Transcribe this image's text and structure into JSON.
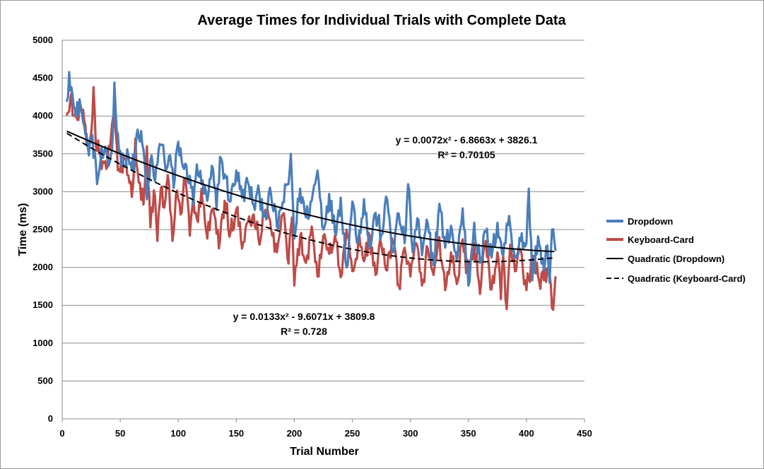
{
  "chart_data": {
    "type": "line",
    "title": "Average Times for Individual Trials with Complete Data",
    "xlabel": "Trial Number",
    "ylabel": "Time (ms)",
    "xlim": [
      0,
      450
    ],
    "ylim": [
      0,
      5000
    ],
    "x_ticks": [
      0,
      50,
      100,
      150,
      200,
      250,
      300,
      350,
      400,
      450
    ],
    "y_ticks": [
      0,
      500,
      1000,
      1500,
      2000,
      2500,
      3000,
      3500,
      4000,
      4500,
      5000
    ],
    "grid": "horizontal",
    "legend_position": "right",
    "series": [
      {
        "name": "Dropdown",
        "color": "#4a7ebb",
        "x_range": [
          4,
          425
        ],
        "anchors": [
          [
            4,
            4200
          ],
          [
            6,
            4580
          ],
          [
            8,
            4380
          ],
          [
            10,
            4120
          ],
          [
            12,
            3980
          ],
          [
            15,
            4220
          ],
          [
            18,
            3920
          ],
          [
            20,
            3760
          ],
          [
            22,
            3600
          ],
          [
            25,
            3650
          ],
          [
            28,
            3540
          ],
          [
            30,
            3100
          ],
          [
            33,
            3420
          ],
          [
            36,
            3500
          ],
          [
            40,
            3340
          ],
          [
            43,
            3560
          ],
          [
            45,
            4440
          ],
          [
            47,
            3800
          ],
          [
            50,
            3540
          ],
          [
            53,
            3330
          ],
          [
            56,
            3560
          ],
          [
            60,
            3290
          ],
          [
            63,
            3480
          ],
          [
            65,
            3820
          ],
          [
            70,
            3560
          ],
          [
            73,
            2900
          ],
          [
            76,
            3420
          ],
          [
            80,
            3140
          ],
          [
            83,
            3540
          ],
          [
            86,
            3620
          ],
          [
            90,
            3300
          ],
          [
            93,
            3480
          ],
          [
            96,
            3050
          ],
          [
            100,
            3660
          ],
          [
            105,
            3300
          ],
          [
            110,
            3210
          ],
          [
            113,
            2820
          ],
          [
            116,
            3360
          ],
          [
            120,
            3100
          ],
          [
            125,
            2880
          ],
          [
            130,
            3300
          ],
          [
            133,
            2760
          ],
          [
            136,
            3460
          ],
          [
            140,
            3230
          ],
          [
            145,
            2870
          ],
          [
            150,
            3280
          ],
          [
            155,
            2920
          ],
          [
            160,
            3120
          ],
          [
            165,
            2820
          ],
          [
            170,
            2960
          ],
          [
            175,
            2700
          ],
          [
            180,
            2960
          ],
          [
            185,
            2540
          ],
          [
            190,
            2860
          ],
          [
            195,
            3100
          ],
          [
            197,
            3500
          ],
          [
            200,
            2380
          ],
          [
            205,
            3040
          ],
          [
            210,
            2660
          ],
          [
            215,
            2880
          ],
          [
            220,
            3280
          ],
          [
            225,
            2500
          ],
          [
            230,
            2970
          ],
          [
            235,
            2460
          ],
          [
            240,
            2920
          ],
          [
            245,
            2000
          ],
          [
            250,
            2870
          ],
          [
            255,
            2340
          ],
          [
            260,
            2900
          ],
          [
            265,
            2250
          ],
          [
            270,
            2720
          ],
          [
            275,
            2430
          ],
          [
            280,
            2900
          ],
          [
            285,
            2200
          ],
          [
            290,
            2710
          ],
          [
            295,
            2320
          ],
          [
            298,
            3100
          ],
          [
            302,
            2200
          ],
          [
            306,
            2650
          ],
          [
            310,
            2160
          ],
          [
            315,
            2580
          ],
          [
            320,
            2030
          ],
          [
            325,
            2840
          ],
          [
            330,
            2260
          ],
          [
            335,
            2550
          ],
          [
            340,
            2080
          ],
          [
            345,
            2780
          ],
          [
            350,
            1760
          ],
          [
            355,
            2590
          ],
          [
            360,
            2060
          ],
          [
            365,
            2470
          ],
          [
            370,
            2130
          ],
          [
            375,
            2590
          ],
          [
            380,
            2160
          ],
          [
            385,
            2680
          ],
          [
            390,
            2130
          ],
          [
            395,
            2350
          ],
          [
            400,
            2320
          ],
          [
            402,
            3040
          ],
          [
            405,
            1830
          ],
          [
            410,
            2410
          ],
          [
            415,
            1960
          ],
          [
            418,
            2290
          ],
          [
            420,
            1800
          ],
          [
            422,
            2500
          ],
          [
            425,
            2230
          ]
        ],
        "jitter": 150
      },
      {
        "name": "Keyboard-Card",
        "color": "#be4b48",
        "x_range": [
          4,
          425
        ],
        "anchors": [
          [
            4,
            4020
          ],
          [
            6,
            4060
          ],
          [
            8,
            4300
          ],
          [
            10,
            4000
          ],
          [
            13,
            3950
          ],
          [
            16,
            4130
          ],
          [
            20,
            3880
          ],
          [
            22,
            3640
          ],
          [
            25,
            3780
          ],
          [
            27,
            4380
          ],
          [
            29,
            3600
          ],
          [
            32,
            3500
          ],
          [
            35,
            3400
          ],
          [
            38,
            3300
          ],
          [
            41,
            3560
          ],
          [
            45,
            4050
          ],
          [
            48,
            3280
          ],
          [
            50,
            3260
          ],
          [
            53,
            3460
          ],
          [
            56,
            3220
          ],
          [
            60,
            2930
          ],
          [
            63,
            3700
          ],
          [
            66,
            3120
          ],
          [
            70,
            2830
          ],
          [
            73,
            3600
          ],
          [
            76,
            2530
          ],
          [
            79,
            3020
          ],
          [
            82,
            2350
          ],
          [
            85,
            3050
          ],
          [
            88,
            2790
          ],
          [
            91,
            3220
          ],
          [
            95,
            2350
          ],
          [
            98,
            2960
          ],
          [
            102,
            2700
          ],
          [
            106,
            3180
          ],
          [
            110,
            2420
          ],
          [
            113,
            2950
          ],
          [
            117,
            2600
          ],
          [
            120,
            3040
          ],
          [
            125,
            2380
          ],
          [
            130,
            2780
          ],
          [
            135,
            2250
          ],
          [
            140,
            2880
          ],
          [
            145,
            2460
          ],
          [
            150,
            2760
          ],
          [
            155,
            2250
          ],
          [
            160,
            2600
          ],
          [
            165,
            2700
          ],
          [
            170,
            2300
          ],
          [
            175,
            2760
          ],
          [
            180,
            2500
          ],
          [
            185,
            2200
          ],
          [
            190,
            2700
          ],
          [
            195,
            2050
          ],
          [
            198,
            2660
          ],
          [
            200,
            1760
          ],
          [
            205,
            2420
          ],
          [
            210,
            2060
          ],
          [
            215,
            2540
          ],
          [
            220,
            1880
          ],
          [
            225,
            2420
          ],
          [
            230,
            2180
          ],
          [
            235,
            2420
          ],
          [
            240,
            1870
          ],
          [
            245,
            2500
          ],
          [
            250,
            1950
          ],
          [
            255,
            2330
          ],
          [
            260,
            2080
          ],
          [
            265,
            2420
          ],
          [
            270,
            1900
          ],
          [
            275,
            2300
          ],
          [
            280,
            1960
          ],
          [
            285,
            2340
          ],
          [
            290,
            1760
          ],
          [
            295,
            2260
          ],
          [
            300,
            1880
          ],
          [
            305,
            2320
          ],
          [
            310,
            1760
          ],
          [
            315,
            2250
          ],
          [
            320,
            1900
          ],
          [
            325,
            2400
          ],
          [
            330,
            1700
          ],
          [
            335,
            2200
          ],
          [
            340,
            1780
          ],
          [
            345,
            2370
          ],
          [
            350,
            1860
          ],
          [
            355,
            2320
          ],
          [
            360,
            1650
          ],
          [
            365,
            2350
          ],
          [
            370,
            1710
          ],
          [
            375,
            2200
          ],
          [
            378,
            1580
          ],
          [
            380,
            2150
          ],
          [
            383,
            1450
          ],
          [
            386,
            2300
          ],
          [
            390,
            1950
          ],
          [
            395,
            2230
          ],
          [
            400,
            1700
          ],
          [
            405,
            2100
          ],
          [
            410,
            1880
          ],
          [
            415,
            1830
          ],
          [
            420,
            1900
          ],
          [
            423,
            1440
          ],
          [
            425,
            1870
          ]
        ],
        "jitter": 150
      }
    ],
    "trendlines": [
      {
        "name": "Quadratic (Dropdown)",
        "type": "quadratic",
        "a": 0.0072,
        "b": -6.8663,
        "c": 3826.1,
        "x_range": [
          4,
          425
        ],
        "style": "solid",
        "color": "#000000",
        "equation_line1": "y = 0.0072x² - 6.8663x + 3826.1",
        "equation_line2": "R² = 0.70105"
      },
      {
        "name": "Quadratic (Keyboard-Card)",
        "type": "quadratic",
        "a": 0.0133,
        "b": -9.6071,
        "c": 3809.8,
        "x_range": [
          4,
          425
        ],
        "style": "dashed",
        "color": "#000000",
        "equation_line1": "y = 0.0133x² - 9.6071x + 3809.8",
        "equation_line2": "R² = 0.728"
      }
    ]
  }
}
